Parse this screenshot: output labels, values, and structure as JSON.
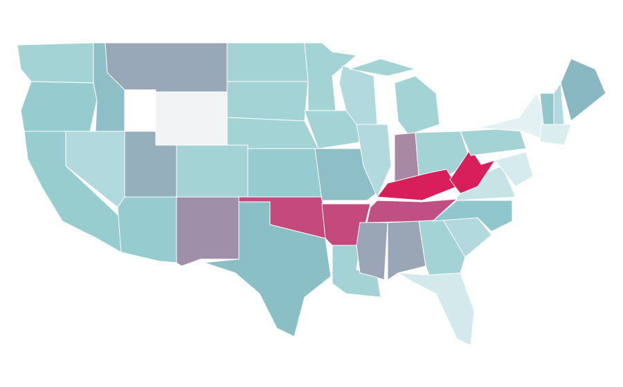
{
  "map": {
    "regions": [
      {
        "color": "#a4d3d6"
      },
      {
        "color": "#96cbcf"
      },
      {
        "color": "#98cdd0"
      },
      {
        "color": "#b2dade"
      },
      {
        "color": "#8fbfc6"
      },
      {
        "color": "#98a8b8"
      },
      {
        "color": "#f2f3f4"
      },
      {
        "color": "#95b0bc"
      },
      {
        "color": "#96cbcf"
      },
      {
        "color": "#a08fa8"
      },
      {
        "color": "#a3d3d5"
      },
      {
        "color": "#a4d3d6"
      },
      {
        "color": "#a4d3d6"
      },
      {
        "color": "#a4d3d6"
      },
      {
        "color": "#96cbcf"
      },
      {
        "color": "#c44a7e"
      },
      {
        "color": "#8abfc6"
      },
      {
        "color": "#a4d3d6"
      },
      {
        "color": "#a4d3d6"
      },
      {
        "color": "#8fbfc6"
      },
      {
        "color": "#c44a7e"
      },
      {
        "color": "#a4d3d6"
      },
      {
        "color": "#b2dade"
      },
      {
        "color": "#b2dade"
      },
      {
        "color": "#a4d3d6"
      },
      {
        "color": "#a889a3"
      },
      {
        "color": "#a4d3d6"
      },
      {
        "color": "#d81e5b"
      },
      {
        "color": "#c04f84"
      },
      {
        "color": "#9aa5b5"
      },
      {
        "color": "#9aa5b5"
      },
      {
        "color": "#a4d3d6"
      },
      {
        "color": "#d3e9ec"
      },
      {
        "color": "#b2dade"
      },
      {
        "color": "#8fc7cc"
      },
      {
        "color": "#c8e3e6"
      },
      {
        "color": "#d81e5b"
      },
      {
        "color": "#a4d3d6"
      },
      {
        "color": "#e4f1f3"
      },
      {
        "color": "#d6ebee"
      },
      {
        "color": "#8fc7cc"
      },
      {
        "color": "#b2dade"
      },
      {
        "color": "#8ab8c2"
      },
      {
        "color": "#daeef0"
      }
    ]
  }
}
